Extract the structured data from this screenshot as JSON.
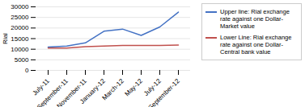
{
  "chart_data": {
    "type": "line",
    "categories": [
      "July-11",
      "September-11",
      "November-11",
      "January-12",
      "March-12",
      "May-12",
      "July-12",
      "September-12"
    ],
    "series": [
      {
        "name": "Upper line: Rial exchange\nrate against one Dollar-\nMarket value",
        "color": "#4472C4",
        "values": [
          11000,
          11500,
          13000,
          18500,
          19500,
          16500,
          20500,
          27500
        ]
      },
      {
        "name": "Lower Line: Rial exchange\nrate against one Dollar-\nCentral bank value",
        "color": "#C0504D",
        "values": [
          10500,
          10500,
          11200,
          11500,
          11800,
          11800,
          11800,
          12000
        ]
      }
    ],
    "ylabel": "Rial",
    "ylim": [
      0,
      30000
    ],
    "yticks": [
      0,
      5000,
      10000,
      15000,
      20000,
      25000,
      30000
    ],
    "grid": true,
    "legend": "right"
  }
}
